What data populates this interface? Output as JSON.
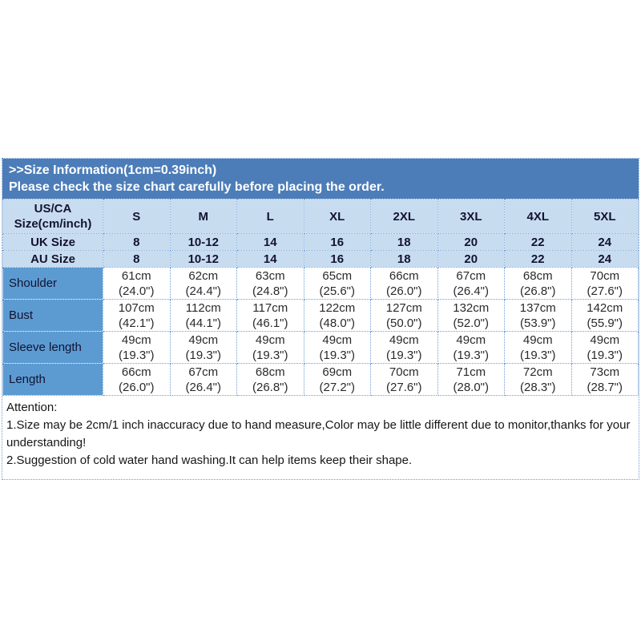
{
  "colors": {
    "title_band_bg": "#4c7db8",
    "header_row_bg": "#c8dcf0",
    "label_col_bg": "#5c9bd2",
    "border_color": "#6f9ed1",
    "title_text": "#ffffff",
    "header_text": "#131330",
    "cell_text": "#2a2a2a",
    "attention_text": "#161616"
  },
  "title_band": {
    "line1": ">>Size Information(1cm=0.39inch)",
    "line2": "Please check the size chart carefully before placing the order."
  },
  "size_table": {
    "corner_header_line1": "US/CA",
    "corner_header_line2": "Size(cm/inch)",
    "size_columns": [
      "S",
      "M",
      "L",
      "XL",
      "2XL",
      "3XL",
      "4XL",
      "5XL"
    ],
    "conversion_rows": [
      {
        "label": "UK Size",
        "values": [
          "8",
          "10-12",
          "14",
          "16",
          "18",
          "20",
          "22",
          "24"
        ]
      },
      {
        "label": "AU Size",
        "values": [
          "8",
          "10-12",
          "14",
          "16",
          "18",
          "20",
          "22",
          "24"
        ]
      }
    ],
    "measurement_rows": [
      {
        "label": "Shoulder",
        "cm": [
          "61cm",
          "62cm",
          "63cm",
          "65cm",
          "66cm",
          "67cm",
          "68cm",
          "70cm"
        ],
        "inch": [
          "(24.0\")",
          "(24.4\")",
          "(24.8\")",
          "(25.6\")",
          "(26.0\")",
          "(26.4\")",
          "(26.8\")",
          "(27.6\")"
        ]
      },
      {
        "label": "Bust",
        "cm": [
          "107cm",
          "112cm",
          "117cm",
          "122cm",
          "127cm",
          "132cm",
          "137cm",
          "142cm"
        ],
        "inch": [
          "(42.1\")",
          "(44.1\")",
          "(46.1\")",
          "(48.0\")",
          "(50.0\")",
          "(52.0\")",
          "(53.9\")",
          "(55.9\")"
        ]
      },
      {
        "label": "Sleeve length",
        "cm": [
          "49cm",
          "49cm",
          "49cm",
          "49cm",
          "49cm",
          "49cm",
          "49cm",
          "49cm"
        ],
        "inch": [
          "(19.3\")",
          "(19.3\")",
          "(19.3\")",
          "(19.3\")",
          "(19.3\")",
          "(19.3\")",
          "(19.3\")",
          "(19.3\")"
        ]
      },
      {
        "label": "Length",
        "cm": [
          "66cm",
          "67cm",
          "68cm",
          "69cm",
          "70cm",
          "71cm",
          "72cm",
          "73cm"
        ],
        "inch": [
          "(26.0\")",
          "(26.4\")",
          "(26.8\")",
          "(27.2\")",
          "(27.6\")",
          "(28.0\")",
          "(28.3\")",
          "(28.7\")"
        ]
      }
    ]
  },
  "attention": {
    "heading": "Attention:",
    "note1": "1.Size may be 2cm/1 inch inaccuracy due to hand measure,Color may be little different due to monitor,thanks for your understanding!",
    "note2": "2.Suggestion of cold water hand washing.It can help items keep their shape."
  }
}
